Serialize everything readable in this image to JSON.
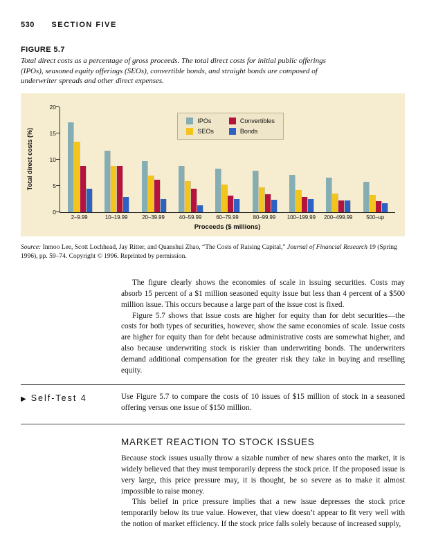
{
  "page": {
    "number": "530",
    "section": "SECTION FIVE"
  },
  "figure": {
    "label": "FIGURE 5.7",
    "caption": "Total direct costs as a percentage of gross proceeds. The total direct costs for initial public offerings (IPOs), seasoned equity offerings (SEOs), convertible bonds, and straight bonds are composed of underwriter spreads and other direct expenses.",
    "source_prefix": "Source:",
    "source_mid": " Inmoo Lee, Scott Lochhead, Jay Ritter, and Quanshui Zhao, “The Costs of Raising Capital,” ",
    "source_journal": "Journal of Financial Research",
    "source_suffix": " 19 (Spring 1996), pp. 59–74. Copyright © 1996. Reprinted by permission."
  },
  "chart_data": {
    "type": "bar",
    "title": "",
    "categories": [
      "2–9.99",
      "10–19.99",
      "20–39.99",
      "40–59.99",
      "60–79.99",
      "80–99.99",
      "100–199.99",
      "200–499.99",
      "500–up"
    ],
    "series": [
      {
        "name": "IPOs",
        "color": "#84AEB4",
        "values": [
          17.0,
          11.7,
          9.7,
          8.7,
          8.2,
          7.9,
          7.1,
          6.5,
          5.7
        ]
      },
      {
        "name": "SEOs",
        "color": "#F2C41C",
        "values": [
          13.3,
          8.7,
          6.9,
          5.9,
          5.2,
          4.7,
          4.2,
          3.5,
          3.2
        ]
      },
      {
        "name": "Convertibles",
        "color": "#B5123E",
        "values": [
          8.8,
          8.7,
          6.1,
          4.4,
          3.1,
          3.3,
          2.9,
          2.2,
          2.1
        ]
      },
      {
        "name": "Bonds",
        "color": "#2D62C4",
        "values": [
          4.4,
          2.8,
          2.5,
          1.3,
          2.5,
          2.3,
          2.4,
          2.2,
          1.6
        ]
      }
    ],
    "xlabel": "Proceeds ($ millions)",
    "ylabel": "Total direct costs (%)",
    "ylim": [
      0,
      20
    ],
    "yticks": [
      0,
      5,
      10,
      15,
      20
    ],
    "legend_position": "top-center",
    "grid": false,
    "background": "#F6EDD1"
  },
  "body": {
    "para1": "The figure clearly shows the economies of scale in issuing securities. Costs may absorb 15 percent of a $1 million seasoned equity issue but less than 4 percent of a $500 million issue. This occurs because a large part of the issue cost is fixed.",
    "para2": "Figure 5.7 shows that issue costs are higher for equity than for debt securities—the costs for both types of securities, however, show the same economies of scale. Issue costs are higher for equity than for debt because administrative costs are somewhat higher, and also because underwriting stock is riskier than underwriting bonds. The underwriters demand additional compensation for the greater risk they take in buying and reselling equity."
  },
  "self_test": {
    "arrow": "▶",
    "label": "Self-Test 4",
    "text": "Use Figure 5.7 to compare the costs of 10 issues of $15 million of stock in a seasoned offering versus one issue of $150 million."
  },
  "section2": {
    "heading": "MARKET REACTION TO STOCK ISSUES",
    "para1": "Because stock issues usually throw a sizable number of new shares onto the market, it is widely believed that they must temporarily depress the stock price. If the proposed issue is very large, this price pressure may, it is thought, be so severe as to make it almost impossible to raise money.",
    "para2": "This belief in price pressure implies that a new issue depresses the stock price temporarily below its true value. However, that view doesn’t appear to fit very well with the notion of market efficiency. If the stock price falls solely because of increased supply,"
  }
}
